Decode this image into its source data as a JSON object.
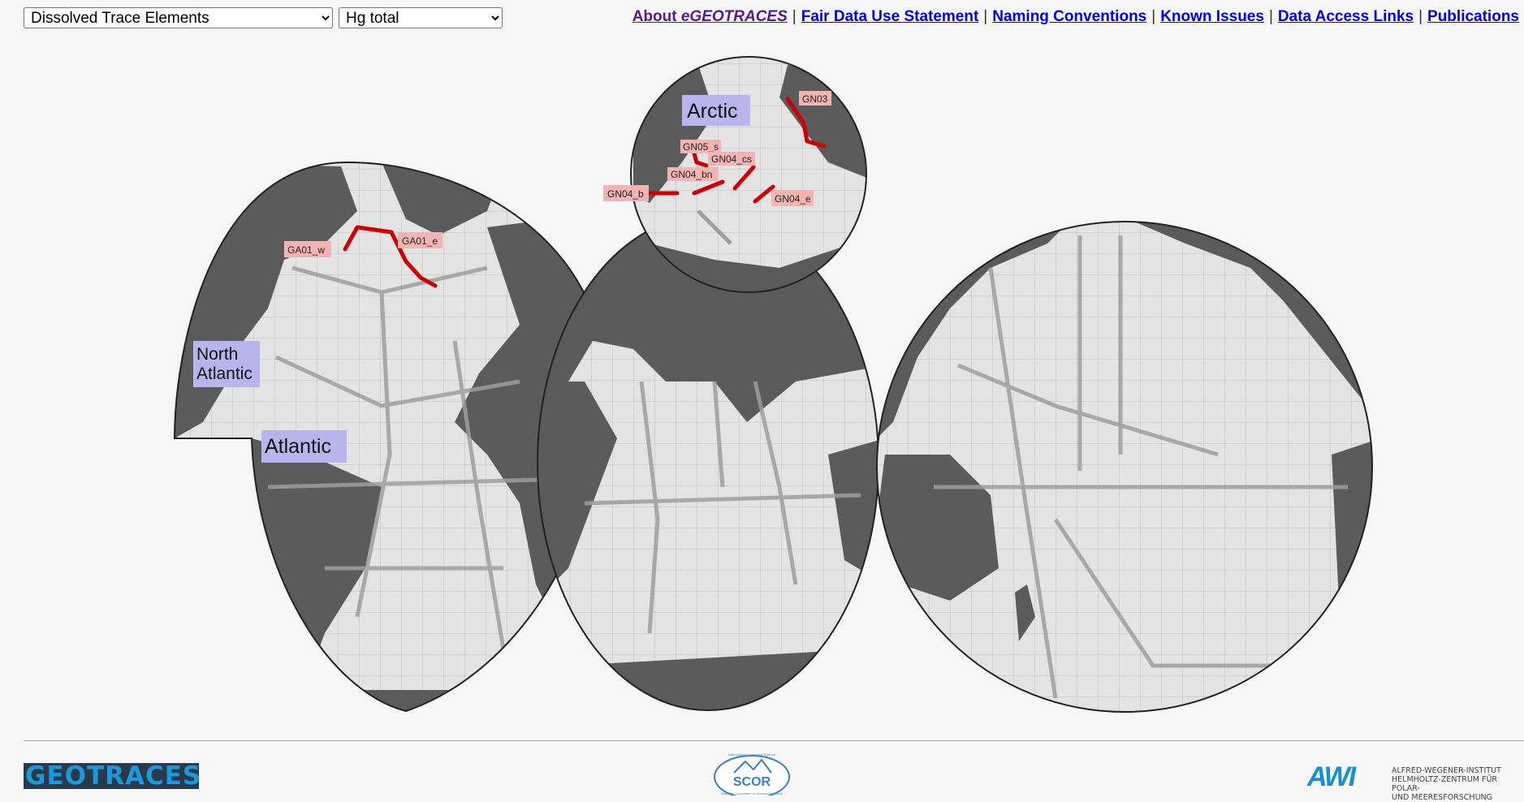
{
  "controls": {
    "category_select": {
      "selected": "Dissolved Trace Elements",
      "options": [
        "Dissolved Trace Elements"
      ]
    },
    "parameter_select": {
      "selected": "Hg total",
      "options": [
        "Hg total"
      ]
    }
  },
  "nav": {
    "about_prefix": "About ",
    "about_brand": "eGEOTRACES",
    "links": [
      "Fair Data Use Statement",
      "Naming Conventions",
      "Known Issues",
      "Data Access Links",
      "Publications"
    ],
    "separator": "|"
  },
  "map": {
    "region_labels": {
      "arctic": "Arctic",
      "north_atlantic_1": "North",
      "north_atlantic_2": "Atlantic",
      "atlantic": "Atlantic"
    },
    "section_labels": {
      "GN03": "GN03",
      "GN05_s": "GN05_s",
      "GN04_cs": "GN04_cs",
      "GN04_bn": "GN04_bn",
      "GN04_b": "GN04_b",
      "GN04_e": "GN04_e",
      "GA01_w": "GA01_w",
      "GA01_e": "GA01_e"
    },
    "colors": {
      "ocean": "#dcdcdc",
      "land": "#5b5b5b",
      "track_highlight": "#cc0000",
      "track_other": "#9e9e9e",
      "section_label_bg": "#f2b3b3",
      "region_label_bg": "#b7b5ec"
    }
  },
  "footer": {
    "left_logo": "GEOTRACES",
    "center_logo": "SCOR",
    "center_logo_ring_top": "International Council for Science",
    "center_logo_ring_bottom": "Scientific Committee on Oceanic Research",
    "right_logo_mark": "AWI",
    "right_logo_text": [
      "ALFRED-WEGENER-INSTITUT",
      "HELMHOLTZ-ZENTRUM FÜR POLAR-",
      "UND MEERESFORSCHUNG"
    ]
  }
}
